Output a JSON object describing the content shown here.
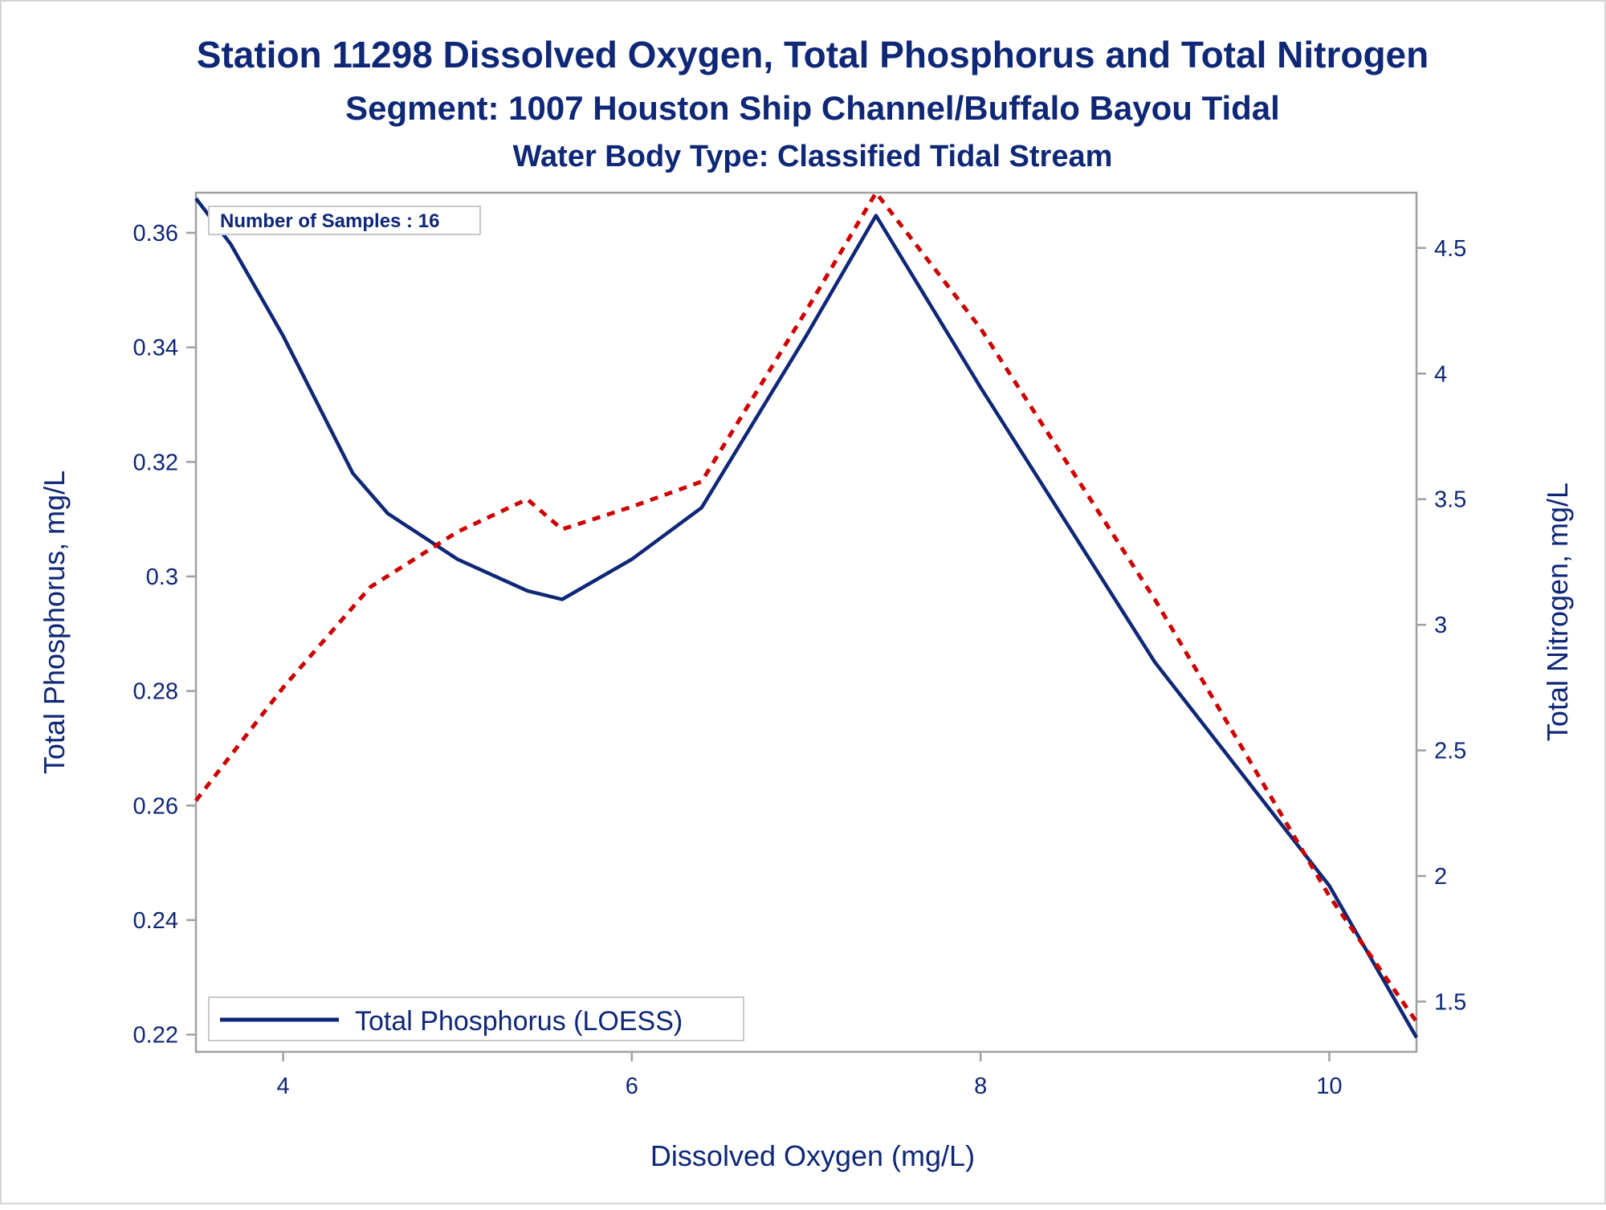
{
  "chart_data": {
    "type": "line",
    "titles": [
      "Station 11298  Dissolved Oxygen, Total Phosphorus and Total Nitrogen",
      "Segment: 1007  Houston Ship Channel/Buffalo Bayou Tidal",
      "Water Body Type: Classified Tidal Stream"
    ],
    "xlabel": "Dissolved Oxygen (mg/L)",
    "ylabel_left": "Total Phosphorus, mg/L",
    "ylabel_right": "Total Nitrogen, mg/L",
    "xlim": [
      3.5,
      10.5
    ],
    "ylim_left": [
      0.217,
      0.367
    ],
    "ylim_right": [
      1.3,
      4.72
    ],
    "x_ticks": [
      4,
      6,
      8,
      10
    ],
    "x_tick_labels": [
      "4",
      "6",
      "8",
      "10"
    ],
    "y_left_ticks": [
      0.22,
      0.24,
      0.26,
      0.28,
      0.3,
      0.32,
      0.34,
      0.36
    ],
    "y_left_tick_labels": [
      "0.22",
      "0.24",
      "0.26",
      "0.28",
      "0.3",
      "0.32",
      "0.34",
      "0.36"
    ],
    "y_right_ticks": [
      1.5,
      2,
      2.5,
      3,
      3.5,
      4,
      4.5
    ],
    "y_right_tick_labels": [
      "1.5",
      "2",
      "2.5",
      "3",
      "3.5",
      "4",
      "4.5"
    ],
    "annotation": "Number of Samples : 16",
    "legend_position": "bottom-left",
    "grid": false,
    "series": [
      {
        "name": "Total Phosphorus (LOESS)",
        "axis": "left",
        "color": "#0e2776",
        "dash": false,
        "x": [
          3.5,
          3.7,
          4.0,
          4.4,
          4.6,
          5.0,
          5.4,
          5.6,
          6.0,
          6.4,
          7.0,
          7.4,
          8.0,
          9.0,
          10.0,
          10.5
        ],
        "y": [
          0.366,
          0.358,
          0.342,
          0.318,
          0.311,
          0.303,
          0.2975,
          0.296,
          0.303,
          0.312,
          0.342,
          0.363,
          0.333,
          0.285,
          0.246,
          0.2195
        ]
      },
      {
        "name": "",
        "axis": "right",
        "color": "#cc0000",
        "dash": true,
        "x": [
          3.5,
          4.0,
          4.5,
          5.0,
          5.4,
          5.6,
          6.0,
          6.4,
          7.0,
          7.4,
          8.0,
          9.0,
          10.0,
          10.5
        ],
        "y": [
          2.3,
          2.75,
          3.15,
          3.37,
          3.5,
          3.38,
          3.47,
          3.57,
          4.25,
          4.72,
          4.18,
          3.1,
          1.92,
          1.42
        ]
      }
    ]
  }
}
